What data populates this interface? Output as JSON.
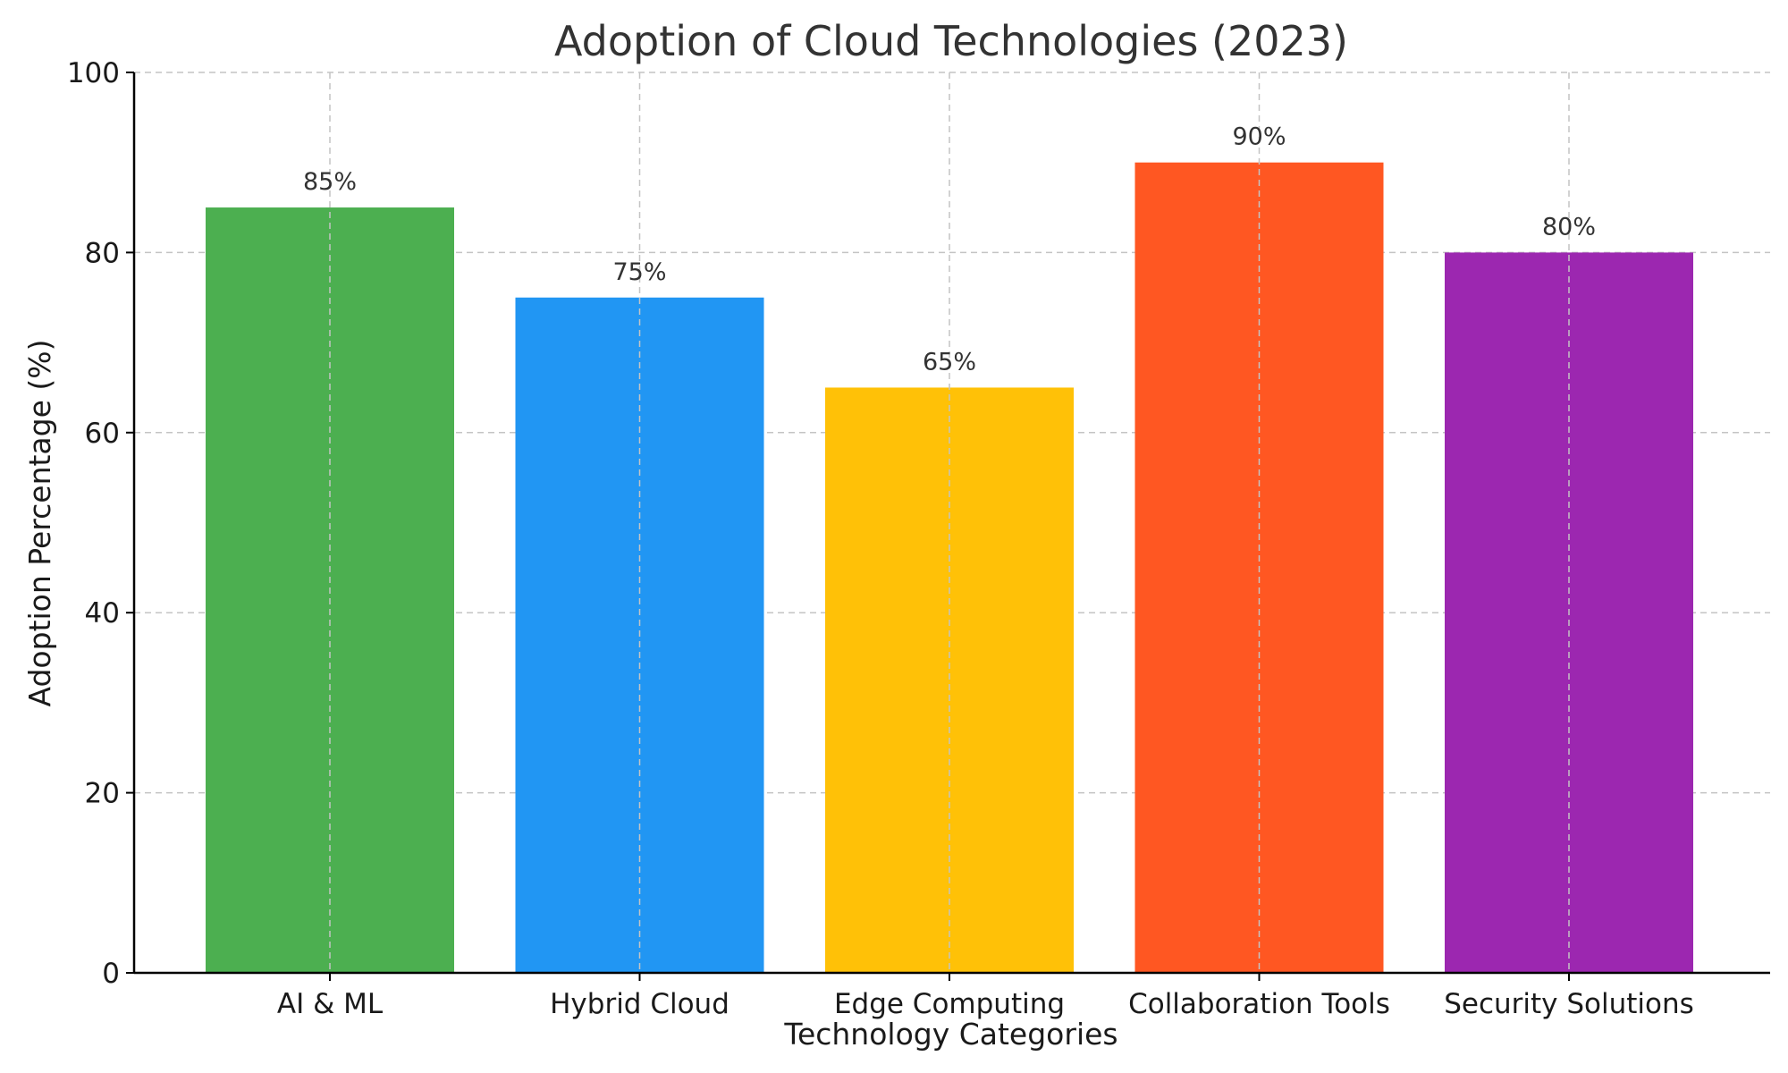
{
  "chart_data": {
    "type": "bar",
    "title": "Adoption of Cloud Technologies (2023)",
    "xlabel": "Technology Categories",
    "ylabel": "Adoption Percentage (%)",
    "categories": [
      "AI & ML",
      "Hybrid Cloud",
      "Edge Computing",
      "Collaboration Tools",
      "Security Solutions"
    ],
    "values": [
      85,
      75,
      65,
      90,
      80
    ],
    "value_labels": [
      "85%",
      "75%",
      "65%",
      "90%",
      "80%"
    ],
    "colors": [
      "#4caf50",
      "#2196f3",
      "#ffc107",
      "#ff5722",
      "#9c27b0"
    ],
    "ylim": [
      0,
      100
    ],
    "yticks": [
      0,
      20,
      40,
      60,
      80,
      100
    ],
    "ytick_labels": [
      "0",
      "20",
      "40",
      "60",
      "80",
      "100"
    ],
    "grid": true,
    "legend": false
  }
}
